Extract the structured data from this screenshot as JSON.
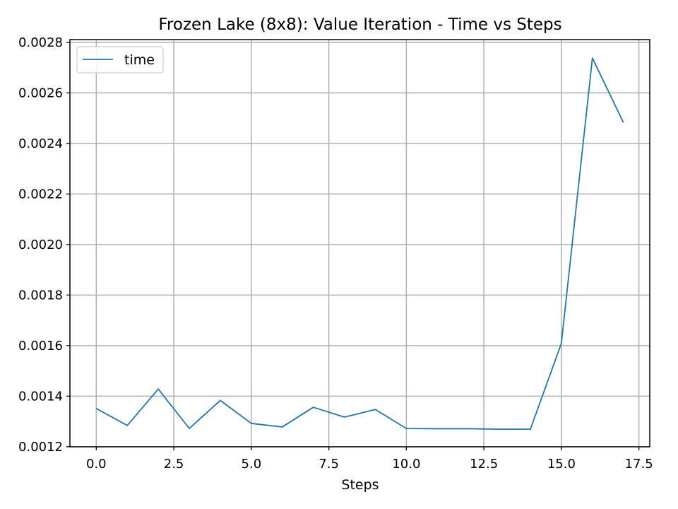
{
  "chart_data": {
    "type": "line",
    "title": "Frozen Lake (8x8): Value Iteration - Time vs Steps",
    "xlabel": "Steps",
    "ylabel": "",
    "x": [
      0,
      1,
      2,
      3,
      4,
      5,
      6,
      7,
      8,
      9,
      10,
      11,
      12,
      13,
      14,
      15,
      16,
      17
    ],
    "series": [
      {
        "name": "time",
        "color": "#1f77b4",
        "values": [
          0.001351,
          0.001284,
          0.001428,
          0.001272,
          0.001383,
          0.001292,
          0.001278,
          0.001356,
          0.001317,
          0.001347,
          0.001272,
          0.001271,
          0.001271,
          0.001269,
          0.001269,
          0.001609,
          0.002738,
          0.002483
        ]
      }
    ],
    "xlim": [
      -0.85,
      17.85
    ],
    "ylim": [
      0.0011995,
      0.002811
    ],
    "xticks": [
      0,
      2.5,
      5,
      7.5,
      10,
      12.5,
      15,
      17.5
    ],
    "xtick_labels": [
      "0.0",
      "2.5",
      "5.0",
      "7.5",
      "10.0",
      "12.5",
      "15.0",
      "17.5"
    ],
    "yticks": [
      0.0012,
      0.0014,
      0.0016,
      0.0018,
      0.002,
      0.0022,
      0.0024,
      0.0026,
      0.0028
    ],
    "ytick_labels": [
      "0.0012",
      "0.0014",
      "0.0016",
      "0.0018",
      "0.0020",
      "0.0022",
      "0.0024",
      "0.0026",
      "0.0028"
    ],
    "grid": true,
    "legend_position": "top-left"
  }
}
